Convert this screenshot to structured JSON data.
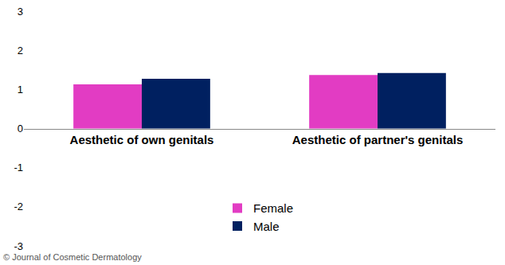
{
  "chart_data": {
    "type": "bar",
    "categories": [
      "Aesthetic of own genitals",
      "Aesthetic of partner's genitals"
    ],
    "series": [
      {
        "name": "Female",
        "color": "#e23cc3",
        "values": [
          1.13,
          1.37
        ]
      },
      {
        "name": "Male",
        "color": "#002060",
        "values": [
          1.27,
          1.42
        ]
      }
    ],
    "ylim": [
      -3,
      3
    ],
    "yticks": [
      -3,
      -2,
      -1,
      0,
      1,
      2,
      3
    ],
    "grid": false,
    "legend": "bottom",
    "annotations": [
      "© Journal of Cosmetic Dermatology"
    ]
  }
}
